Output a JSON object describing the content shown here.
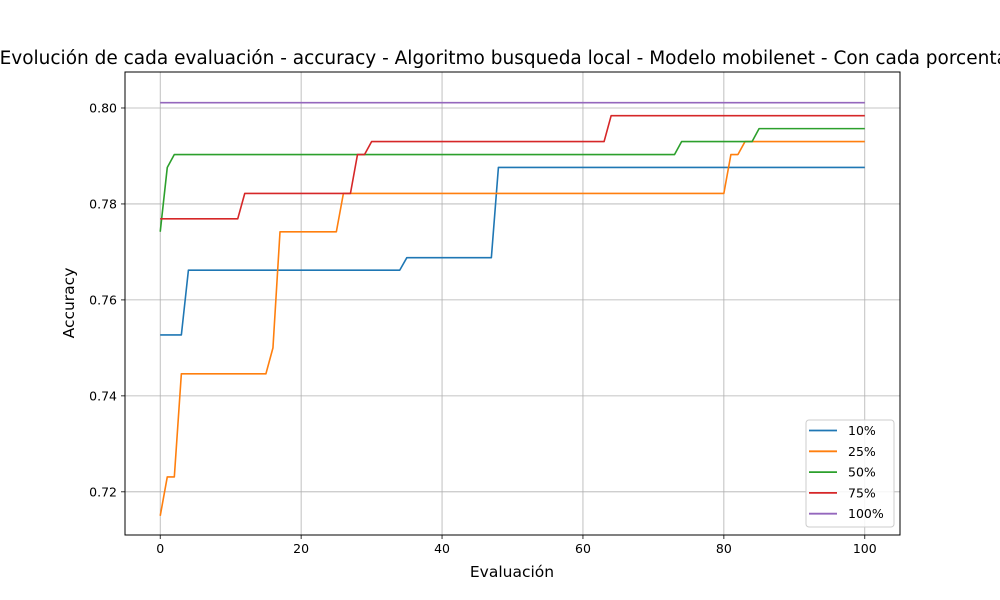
{
  "chart_data": {
    "type": "line",
    "title": "Evolución de cada evaluación - accuracy - Algoritmo busqueda local - Modelo mobilenet - Con cada porcentaje",
    "xlabel": "Evaluación",
    "ylabel": "Accuracy",
    "xlim": [
      -5,
      105
    ],
    "ylim": [
      0.711,
      0.8075
    ],
    "xticks": [
      0,
      20,
      40,
      60,
      80,
      100
    ],
    "xtick_labels": [
      "0",
      "20",
      "40",
      "60",
      "80",
      "100"
    ],
    "yticks": [
      0.72,
      0.74,
      0.76,
      0.78,
      0.8
    ],
    "ytick_labels": [
      "0.72",
      "0.74",
      "0.76",
      "0.78",
      "0.80"
    ],
    "grid": true,
    "legend_position": "lower-right",
    "series": [
      {
        "name": "10%",
        "color": "#1f77b4",
        "points": [
          [
            0,
            0.7527
          ],
          [
            3,
            0.7527
          ],
          [
            4,
            0.7662
          ],
          [
            34,
            0.7662
          ],
          [
            35,
            0.7688
          ],
          [
            47,
            0.7688
          ],
          [
            48,
            0.7876
          ],
          [
            100,
            0.7876
          ]
        ]
      },
      {
        "name": "25%",
        "color": "#ff7f0e",
        "points": [
          [
            0,
            0.715
          ],
          [
            1,
            0.7231
          ],
          [
            2,
            0.7231
          ],
          [
            3,
            0.7446
          ],
          [
            15,
            0.7446
          ],
          [
            16,
            0.75
          ],
          [
            17,
            0.7742
          ],
          [
            25,
            0.7742
          ],
          [
            26,
            0.7822
          ],
          [
            80,
            0.7822
          ],
          [
            81,
            0.7903
          ],
          [
            82,
            0.7903
          ],
          [
            83,
            0.793
          ],
          [
            100,
            0.793
          ]
        ]
      },
      {
        "name": "50%",
        "color": "#2ca02c",
        "points": [
          [
            0,
            0.7742
          ],
          [
            1,
            0.7876
          ],
          [
            2,
            0.7903
          ],
          [
            73,
            0.7903
          ],
          [
            74,
            0.793
          ],
          [
            84,
            0.793
          ],
          [
            85,
            0.7957
          ],
          [
            100,
            0.7957
          ]
        ]
      },
      {
        "name": "75%",
        "color": "#d62728",
        "points": [
          [
            0,
            0.7769
          ],
          [
            11,
            0.7769
          ],
          [
            12,
            0.7822
          ],
          [
            27,
            0.7822
          ],
          [
            28,
            0.7903
          ],
          [
            29,
            0.7903
          ],
          [
            30,
            0.793
          ],
          [
            63,
            0.793
          ],
          [
            64,
            0.7984
          ],
          [
            100,
            0.7984
          ]
        ]
      },
      {
        "name": "100%",
        "color": "#9467bd",
        "points": [
          [
            0,
            0.8011
          ],
          [
            100,
            0.8011
          ]
        ]
      }
    ]
  }
}
